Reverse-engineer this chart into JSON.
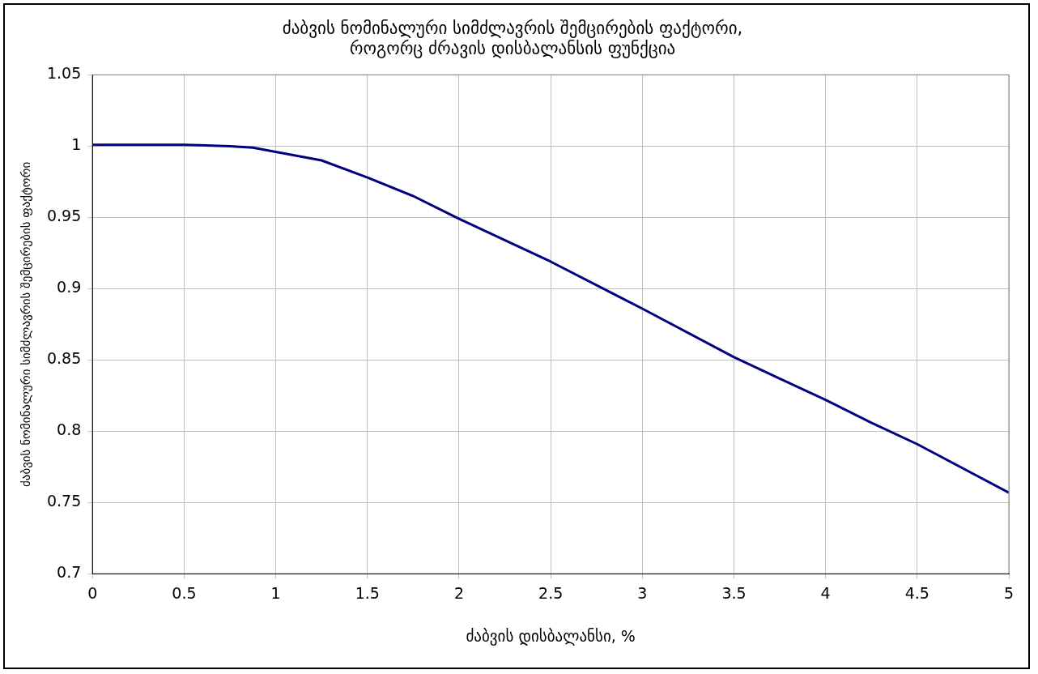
{
  "chart_data": {
    "type": "line",
    "title": [
      "ძაბვის ნომინალური სიმძლავრის შემცირების ფაქტორი,",
      "როგორც ძრავის დისბალანსის ფუნქცია"
    ],
    "xlabel": "ძაბვის დისბალანსი, %",
    "ylabel": "ძაბვის ნომინალური სიმძლავრის შემცირების ფაქტორი",
    "x": [
      0,
      0.5,
      0.75,
      0.875,
      1,
      1.25,
      1.5,
      1.75,
      2,
      2.5,
      3,
      3.5,
      3.75,
      4,
      4.25,
      4.5,
      5
    ],
    "series": [
      {
        "color": "#000080",
        "values": [
          1.001,
          1.001,
          1.0,
          0.999,
          0.996,
          0.99,
          0.978,
          0.965,
          0.949,
          0.919,
          0.886,
          0.852,
          0.837,
          0.822,
          0.806,
          0.791,
          0.757
        ]
      }
    ],
    "xlim": [
      0,
      5
    ],
    "xticks": [
      0,
      0.5,
      1,
      1.5,
      2,
      2.5,
      3,
      3.5,
      4,
      4.5,
      5
    ],
    "ylim": [
      0.7,
      1.05
    ],
    "yticks": [
      0.7,
      0.75,
      0.8,
      0.85,
      0.9,
      0.95,
      1,
      1.05
    ],
    "grid": true,
    "legend": false,
    "marker": "none",
    "line_style": "solid"
  }
}
